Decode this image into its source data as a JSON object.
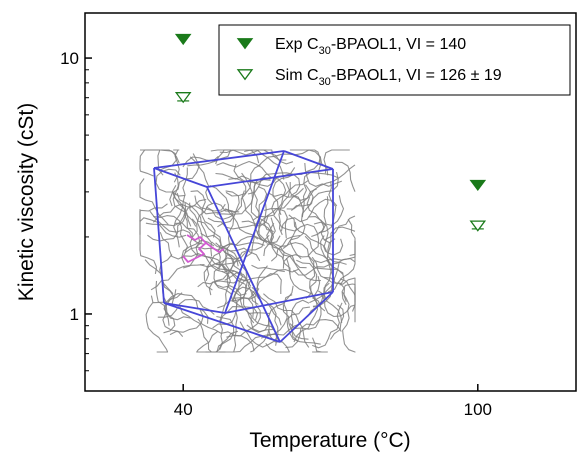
{
  "chart_data": {
    "type": "scatter",
    "xlabel": "Temperature (°C)",
    "ylabel": "Kinetic viscosity (cSt)",
    "x_ticks": [
      40,
      100
    ],
    "y_ticks": [
      1,
      10
    ],
    "xlim": [
      20,
      120
    ],
    "ylim": [
      0.5,
      15
    ],
    "y_scale": "log",
    "grid": false,
    "legend_position": "top-right",
    "series": [
      {
        "name": "Exp C30-BPAOL1, VI = 140",
        "label_main": "Exp C",
        "label_sub": "30",
        "label_rest": "-BPAOL1, VI = 140",
        "marker": "filled-down-triangle",
        "color": "#1a7a1a",
        "points": [
          {
            "x": 40,
            "y": 11.9
          },
          {
            "x": 100,
            "y": 3.2
          }
        ]
      },
      {
        "name": "Sim C30-BPAOL1, VI = 126 ± 19",
        "label_main": "Sim C",
        "label_sub": "30",
        "label_rest": "-BPAOL1, VI = 126 ± 19",
        "marker": "open-down-triangle-with-errorbar",
        "color": "#1a7a1a",
        "points": [
          {
            "x": 40,
            "y": 7.05,
            "err": 0.25
          },
          {
            "x": 100,
            "y": 2.22,
            "err": 0.07
          }
        ]
      }
    ],
    "inset": "simulation box with polymer chains",
    "inset_colors": {
      "box": "#4646d8",
      "chains": "#7f7f7f",
      "highlight": "#d25ad2"
    }
  }
}
